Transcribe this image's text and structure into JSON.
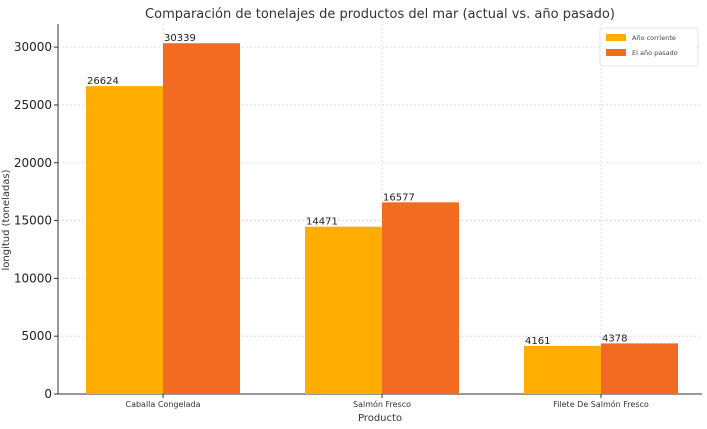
{
  "chart_data": {
    "type": "bar",
    "title": "Comparación de tonelajes de productos del mar (actual vs. año pasado)",
    "xlabel": "Producto",
    "ylabel": "longitud (toneladas)",
    "categories": [
      "Caballa Congelada",
      "Salmón Fresco",
      "Filete De Salmón Fresco"
    ],
    "series": [
      {
        "name": "Año corriente",
        "values": [
          26624,
          14471,
          4161
        ],
        "color": "#FFAE00"
      },
      {
        "name": "El año pasado",
        "values": [
          30339,
          16577,
          4378
        ],
        "color": "#F26B21"
      }
    ],
    "ylim": [
      0,
      32000
    ],
    "yticks": [
      0,
      5000,
      10000,
      15000,
      20000,
      25000,
      30000
    ],
    "grid": true,
    "legend_position": "top-right"
  }
}
